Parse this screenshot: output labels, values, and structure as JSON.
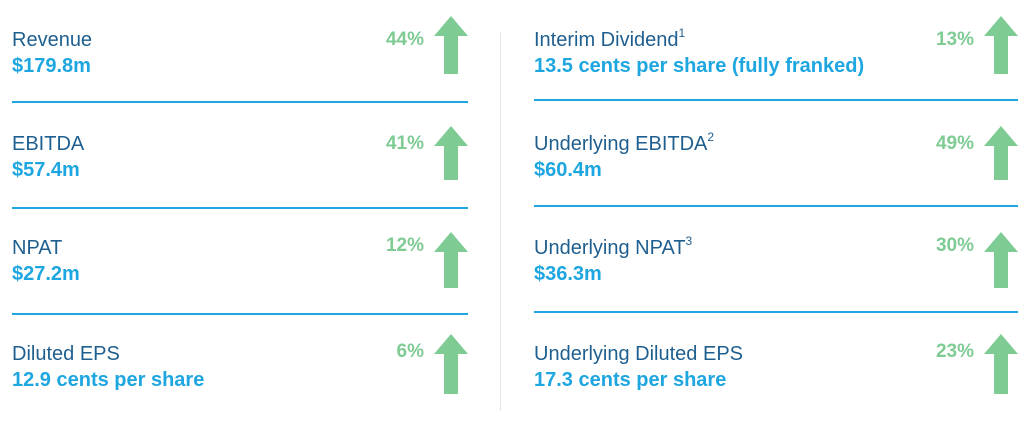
{
  "colors": {
    "label": "#1f5f8f",
    "value": "#1ea6e0",
    "change": "#7fcb94",
    "arrow": "#7fcb94",
    "rule": "#1ea6e0"
  },
  "left": [
    {
      "label": "Revenue",
      "sup": "",
      "value": "$179.8m",
      "change": "44%",
      "icon": "up-arrow-icon"
    },
    {
      "label": "EBITDA",
      "sup": "",
      "value": "$57.4m",
      "change": "41%",
      "icon": "up-arrow-icon"
    },
    {
      "label": "NPAT",
      "sup": "",
      "value": "$27.2m",
      "change": "12%",
      "icon": "up-arrow-icon"
    },
    {
      "label": "Diluted EPS",
      "sup": "",
      "value": "12.9 cents per share",
      "change": "6%",
      "icon": "up-arrow-icon"
    }
  ],
  "right": [
    {
      "label": "Interim Dividend",
      "sup": "1",
      "value": "13.5 cents per share (fully franked)",
      "change": "13%",
      "icon": "up-arrow-icon"
    },
    {
      "label": "Underlying EBITDA",
      "sup": "2",
      "value": "$60.4m",
      "change": "49%",
      "icon": "up-arrow-icon"
    },
    {
      "label": "Underlying NPAT",
      "sup": "3",
      "value": "$36.3m",
      "change": "30%",
      "icon": "up-arrow-icon"
    },
    {
      "label": "Underlying Diluted EPS",
      "sup": "",
      "value": "17.3 cents per share",
      "change": "23%",
      "icon": "up-arrow-icon"
    }
  ]
}
